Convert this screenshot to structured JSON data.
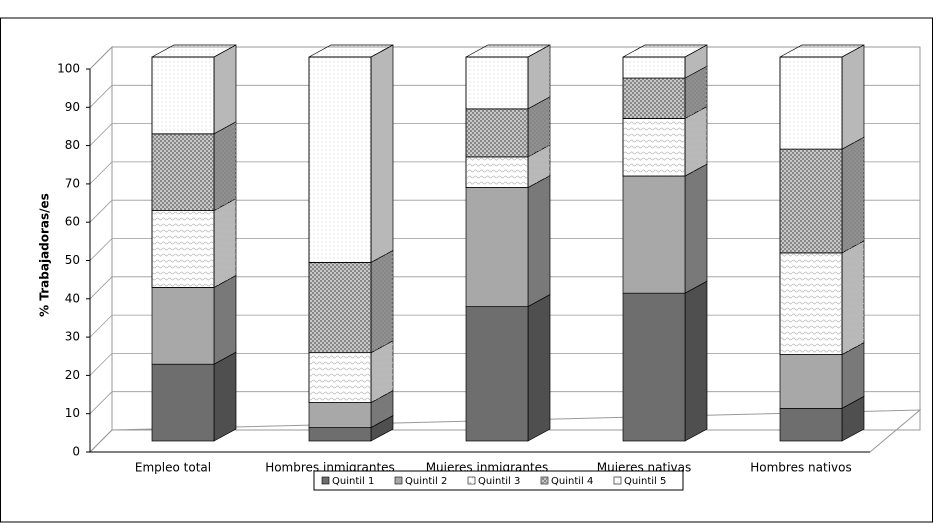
{
  "chart_data": {
    "type": "bar",
    "stacked": true,
    "y_label": "% Trabajadoras/es",
    "categories": [
      "Empleo total",
      "Hombres inmigrantes",
      "Mujeres inmigrantes",
      "Mujeres nativas",
      "Hombres nativos"
    ],
    "series": [
      {
        "name": "Quintil 1",
        "color": "#6e6e6e",
        "values": [
          20,
          3.5,
          35,
          38.5,
          8.5
        ]
      },
      {
        "name": "Quintil 2",
        "color": "#a8a8a8",
        "values": [
          20,
          6.5,
          31,
          30.5,
          14
        ]
      },
      {
        "name": "Quintil 3",
        "color": "#ffffff",
        "values": [
          20,
          13,
          8,
          15,
          26.5
        ]
      },
      {
        "name": "Quintil 4",
        "color": "#c8c8c8",
        "values": [
          20,
          23.5,
          12.5,
          10.5,
          27
        ]
      },
      {
        "name": "Quintil 5",
        "color": "#ffffff",
        "values": [
          20,
          53.5,
          13.5,
          5.5,
          24
        ]
      }
    ],
    "ylim": [
      0,
      100
    ],
    "yticks": [
      0,
      10,
      20,
      30,
      40,
      50,
      60,
      70,
      80,
      90,
      100
    ],
    "grid": true,
    "legend": "bottom"
  }
}
